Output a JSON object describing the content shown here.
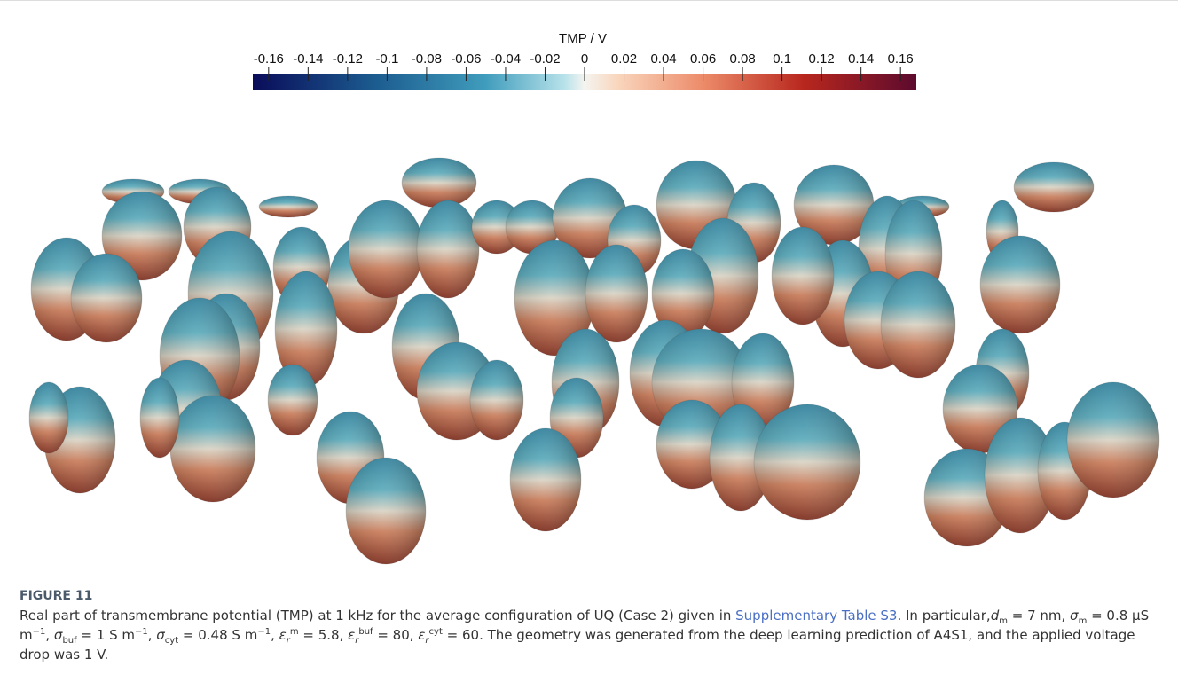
{
  "figure": {
    "colorbar": {
      "label": "TMP / V",
      "lim": [
        -0.168,
        0.168
      ],
      "ticks": [
        -0.16,
        -0.14,
        -0.12,
        -0.1,
        -0.08,
        -0.06,
        -0.04,
        -0.02,
        0,
        0.02,
        0.04,
        0.06,
        0.08,
        0.1,
        0.12,
        0.14,
        0.16
      ]
    },
    "caption": {
      "label": "FIGURE 11",
      "runs": [
        {
          "text": "Real part of transmembrane potential (TMP) at 1 kHz for the average configuration of UQ (Case 2) given in ",
          "style": "normal"
        },
        {
          "text": "Supplementary Table S3",
          "style": "link"
        },
        {
          "text": ". In particular,",
          "style": "normal"
        },
        {
          "text": "d",
          "style": "i"
        },
        {
          "text": "m",
          "style": "sub"
        },
        {
          "text": " = 7 nm, ",
          "style": "normal"
        },
        {
          "text": "σ",
          "style": "i"
        },
        {
          "text": "m",
          "style": "sub"
        },
        {
          "text": " = 0.8 μS m",
          "style": "normal"
        },
        {
          "text": "−1",
          "style": "sup"
        },
        {
          "text": ", ",
          "style": "normal"
        },
        {
          "text": "σ",
          "style": "i"
        },
        {
          "text": "buf",
          "style": "sub"
        },
        {
          "text": " = 1 S m",
          "style": "normal"
        },
        {
          "text": "−1",
          "style": "sup"
        },
        {
          "text": ", ",
          "style": "normal"
        },
        {
          "text": "σ",
          "style": "i"
        },
        {
          "text": "cyt",
          "style": "sub"
        },
        {
          "text": " = 0.48 S m",
          "style": "normal"
        },
        {
          "text": "−1",
          "style": "sup"
        },
        {
          "text": ", ",
          "style": "normal"
        },
        {
          "text": "ε",
          "style": "i"
        },
        {
          "text": "r",
          "style": "subi"
        },
        {
          "text": "m",
          "style": "sup"
        },
        {
          "text": " = 5.8, ",
          "style": "normal"
        },
        {
          "text": "ε",
          "style": "i"
        },
        {
          "text": "r",
          "style": "subi"
        },
        {
          "text": "buf",
          "style": "sup"
        },
        {
          "text": " = 80, ",
          "style": "normal"
        },
        {
          "text": "ε",
          "style": "i"
        },
        {
          "text": "r",
          "style": "subi"
        },
        {
          "text": "cyt",
          "style": "sup"
        },
        {
          "text": " = 60. The geometry was generated from the deep learning prediction of A4S1, and the applied voltage drop was 1 V.",
          "style": "normal"
        }
      ]
    }
  }
}
